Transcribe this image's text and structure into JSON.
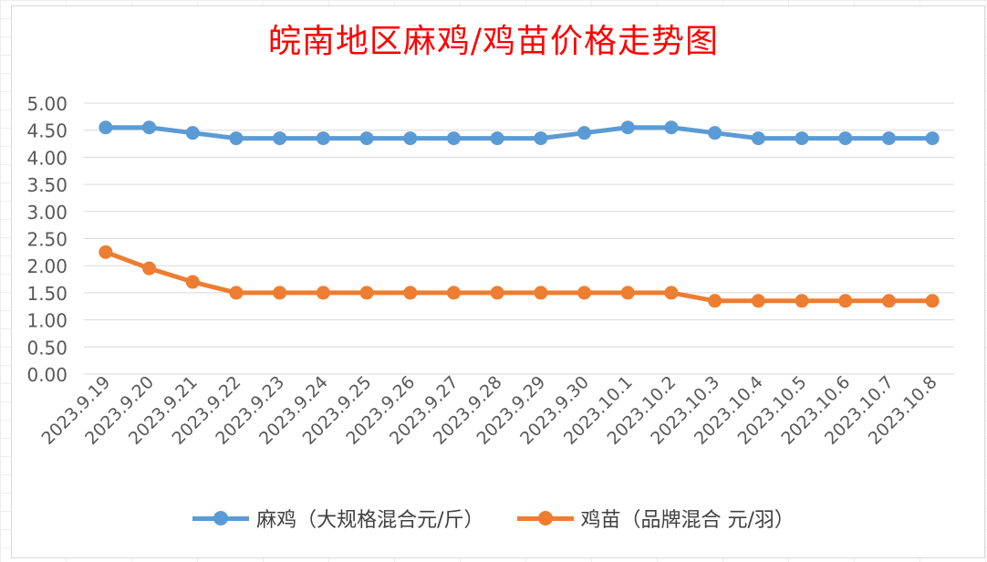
{
  "chart_data": {
    "type": "line",
    "title": "皖南地区麻鸡/鸡苗价格走势图",
    "categories": [
      "2023.9.19",
      "2023.9.20",
      "2023.9.21",
      "2023.9.22",
      "2023.9.23",
      "2023.9.24",
      "2023.9.25",
      "2023.9.26",
      "2023.9.27",
      "2023.9.28",
      "2023.9.29",
      "2023.9.30",
      "2023.10.1",
      "2023.10.2",
      "2023.10.3",
      "2023.10.4",
      "2023.10.5",
      "2023.10.6",
      "2023.10.7",
      "2023.10.8"
    ],
    "series": [
      {
        "name": "麻鸡（大规格混合元/斤）",
        "color": "#5b9bd5",
        "values": [
          4.55,
          4.55,
          4.45,
          4.35,
          4.35,
          4.35,
          4.35,
          4.35,
          4.35,
          4.35,
          4.35,
          4.45,
          4.55,
          4.55,
          4.45,
          4.35,
          4.35,
          4.35,
          4.35,
          4.35
        ]
      },
      {
        "name": "鸡苗（品牌混合 元/羽）",
        "color": "#ed7d31",
        "values": [
          2.25,
          1.95,
          1.7,
          1.5,
          1.5,
          1.5,
          1.5,
          1.5,
          1.5,
          1.5,
          1.5,
          1.5,
          1.5,
          1.5,
          1.35,
          1.35,
          1.35,
          1.35,
          1.35,
          1.35
        ]
      }
    ],
    "yticks": [
      "0.00",
      "0.50",
      "1.00",
      "1.50",
      "2.00",
      "2.50",
      "3.00",
      "3.50",
      "4.00",
      "4.50",
      "5.00"
    ],
    "ylim": [
      0,
      5
    ],
    "grid": true,
    "legend": "bottom",
    "title_color": "#ff0000"
  }
}
